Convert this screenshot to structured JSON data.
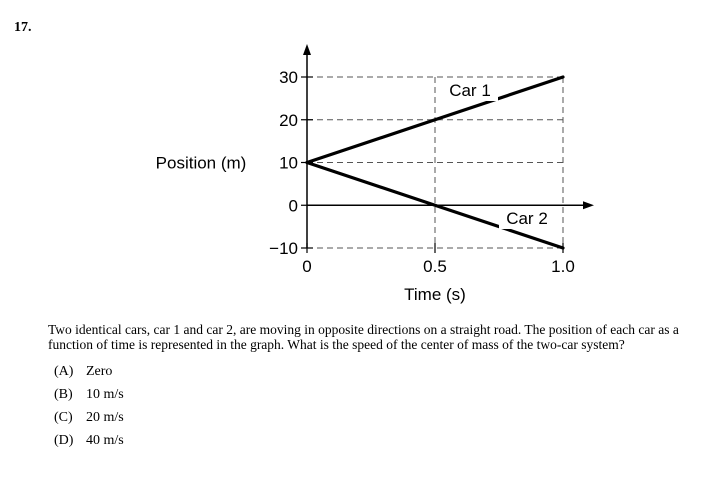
{
  "question": {
    "number": "17.",
    "prompt": "Two identical cars, car 1 and car 2, are moving in opposite directions on a straight road. The position of each car as a function of time is represented in the graph. What is the speed of the center of mass of the two-car system?",
    "choices": [
      {
        "letter": "(A)",
        "text": "Zero"
      },
      {
        "letter": "(B)",
        "text": "10 m/s"
      },
      {
        "letter": "(C)",
        "text": "20 m/s"
      },
      {
        "letter": "(D)",
        "text": "40 m/s"
      }
    ]
  },
  "chart_data": {
    "type": "line",
    "xlabel": "Time (s)",
    "ylabel": "Position (m)",
    "xlim": [
      0,
      1.0
    ],
    "ylim": [
      -10,
      30
    ],
    "x_ticks": [
      0,
      0.5,
      1.0
    ],
    "x_tick_labels": [
      "0",
      "0.5",
      "1.0"
    ],
    "y_ticks": [
      30,
      20,
      10,
      0,
      -10
    ],
    "y_tick_labels": [
      "30",
      "20",
      "10",
      "0",
      "−10"
    ],
    "grid": "dashed",
    "series": [
      {
        "name": "Car 1",
        "x": [
          0,
          0.5,
          1.0
        ],
        "y": [
          10,
          20,
          30
        ]
      },
      {
        "name": "Car 2",
        "x": [
          0,
          0.5,
          1.0
        ],
        "y": [
          10,
          0,
          -10
        ]
      }
    ]
  }
}
